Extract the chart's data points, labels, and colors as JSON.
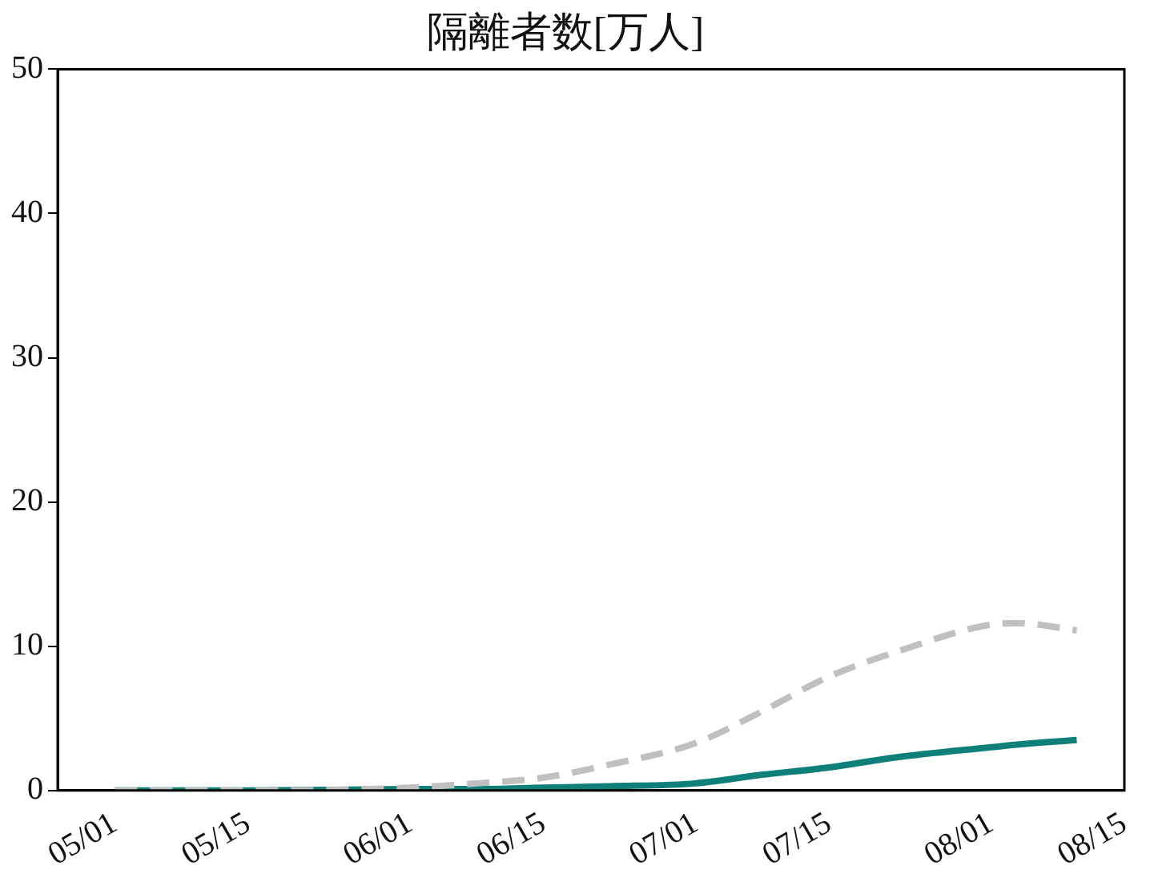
{
  "chart_data": {
    "type": "line",
    "title": "隔離者数[万人]",
    "x": [
      "--05-01",
      "--05-15",
      "--06-01",
      "--06-08",
      "--06-15",
      "--06-22",
      "--07-01",
      "--07-08",
      "--07-15",
      "--07-22",
      "--08-01",
      "--08-04",
      "--08-10"
    ],
    "series": [
      {
        "color": "#c0c0c0",
        "line_style": "dashed",
        "values": [
          0,
          0,
          0.2,
          0.5,
          0.9,
          1.8,
          3.3,
          5.5,
          7.9,
          9.6,
          11.5,
          11.6,
          11.1
        ]
      },
      {
        "color": "#0f7f7a",
        "line_style": "solid",
        "values": [
          0,
          0,
          0.1,
          0.1,
          0.2,
          0.3,
          0.5,
          1.1,
          1.6,
          2.3,
          3.0,
          3.2,
          3.5
        ]
      }
    ],
    "xlim": [
      "--04-25",
      "--08-15"
    ],
    "xticks": [
      {
        "value": "--05-01",
        "label": "05/01"
      },
      {
        "value": "--05-15",
        "label": "05/15"
      },
      {
        "value": "--06-01",
        "label": "06/01"
      },
      {
        "value": "--06-15",
        "label": "06/15"
      },
      {
        "value": "--07-01",
        "label": "07/01"
      },
      {
        "value": "--07-15",
        "label": "07/15"
      },
      {
        "value": "--08-01",
        "label": "08/01"
      },
      {
        "value": "--08-15",
        "label": "08/15"
      }
    ],
    "ylim": [
      0,
      50
    ],
    "yticks": [
      0,
      10,
      20,
      30,
      40,
      50
    ],
    "grid": false,
    "legend": false
  }
}
